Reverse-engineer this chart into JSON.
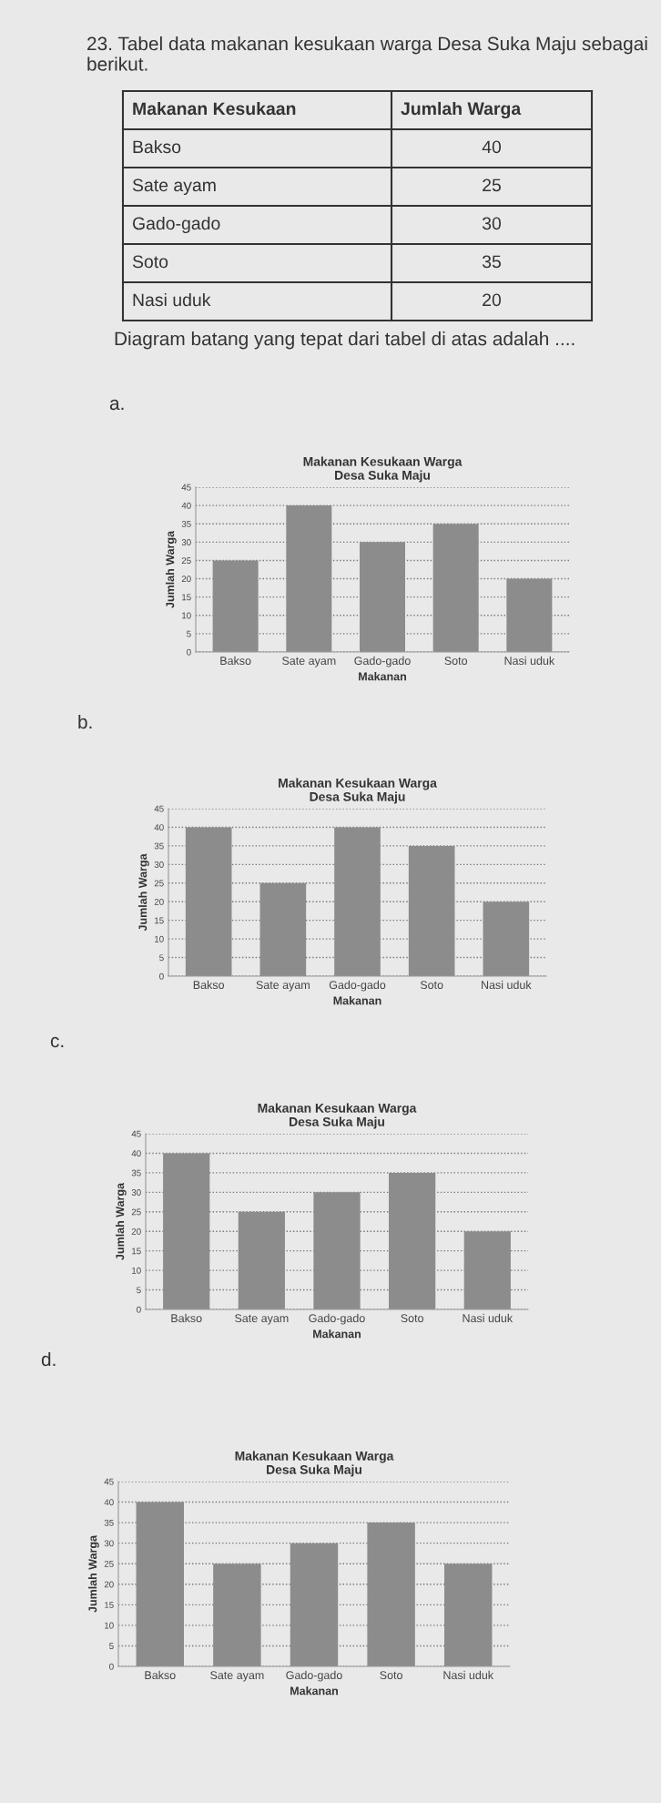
{
  "chart_data": [
    {
      "type": "other",
      "title": "23. Tabel data makanan kesukaan warga Desa Suka Maju sebagai berikut.",
      "categories": [
        "Bakso",
        "Sate ayam",
        "Gado-gado",
        "Soto",
        "Nasi uduk"
      ],
      "values": [
        40,
        25,
        30,
        35,
        20
      ],
      "data_labels": true,
      "annotations": [
        "Makanan Kesukaan",
        "Jumlah Warga",
        "Diagram batang yang tepat dari tabel di atas adalah ...."
      ]
    },
    {
      "type": "bar",
      "title": "Makanan Kesukaan Warga\nDesa Suka Maju",
      "xlabel": "Makanan",
      "ylabel": "Jumlah Warga",
      "categories": [
        "Bakso",
        "Sate ayam",
        "Gado-gado",
        "Soto",
        "Nasi uduk"
      ],
      "values": [
        25,
        40,
        30,
        35,
        20
      ],
      "color": "#8c8c8c",
      "ylim": [
        0,
        45
      ],
      "yticks": [
        0,
        5,
        10,
        15,
        20,
        25,
        30,
        35,
        40,
        45
      ],
      "grid": "y",
      "annotations": [
        "a."
      ]
    },
    {
      "type": "bar",
      "title": "Makanan Kesukaan Warga\nDesa Suka Maju",
      "xlabel": "Makanan",
      "ylabel": "Jumlah Warga",
      "categories": [
        "Bakso",
        "Sate ayam",
        "Gado-gado",
        "Soto",
        "Nasi uduk"
      ],
      "values": [
        40,
        25,
        40,
        35,
        20
      ],
      "color": "#8c8c8c",
      "ylim": [
        0,
        45
      ],
      "yticks": [
        0,
        5,
        10,
        15,
        20,
        25,
        30,
        35,
        40,
        45
      ],
      "grid": "y",
      "annotations": [
        "b."
      ]
    },
    {
      "type": "bar",
      "title": "Makanan Kesukaan Warga\nDesa Suka Maju",
      "xlabel": "Makanan",
      "ylabel": "Jumlah Warga",
      "categories": [
        "Bakso",
        "Sate ayam",
        "Gado-gado",
        "Soto",
        "Nasi uduk"
      ],
      "values": [
        40,
        25,
        30,
        35,
        20
      ],
      "color": "#8c8c8c",
      "ylim": [
        0,
        45
      ],
      "yticks": [
        0,
        5,
        10,
        15,
        20,
        25,
        30,
        35,
        40,
        45
      ],
      "grid": "y",
      "annotations": [
        "c."
      ]
    },
    {
      "type": "bar",
      "title": "Makanan Kesukaan Warga\nDesa Suka Maju",
      "xlabel": "Makanan",
      "ylabel": "Jumlah Warga",
      "categories": [
        "Bakso",
        "Sate ayam",
        "Gado-gado",
        "Soto",
        "Nasi uduk"
      ],
      "values": [
        40,
        25,
        30,
        35,
        25
      ],
      "color": "#8c8c8c",
      "ylim": [
        0,
        45
      ],
      "yticks": [
        0,
        5,
        10,
        15,
        20,
        25,
        30,
        35,
        40,
        45
      ],
      "grid": "y",
      "annotations": [
        "d."
      ]
    }
  ]
}
